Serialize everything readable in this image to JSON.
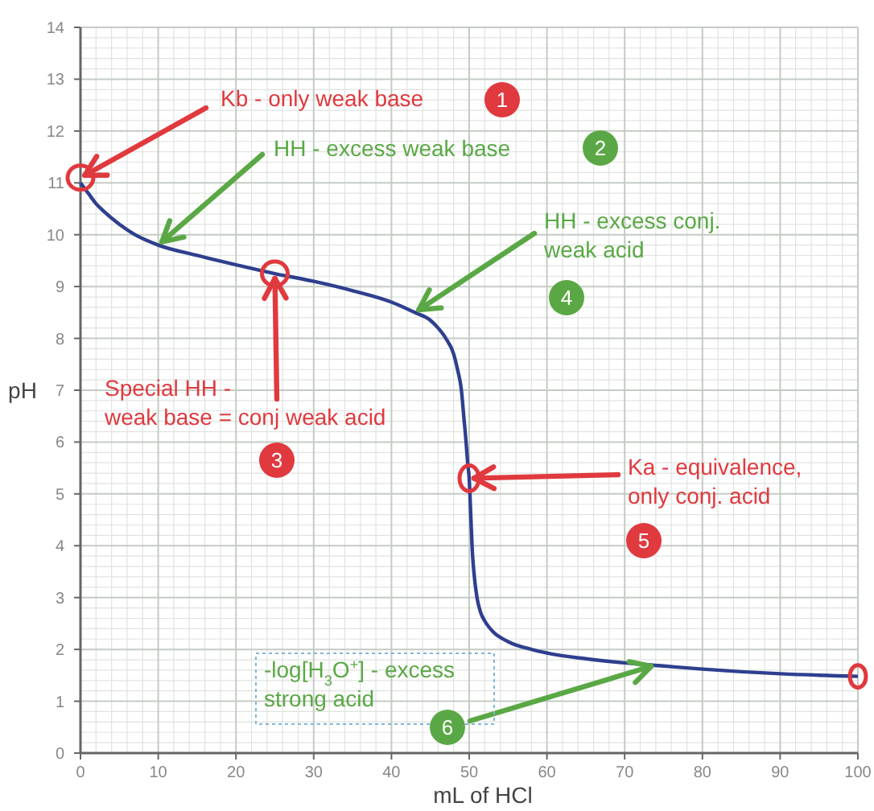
{
  "chart_data": {
    "type": "line",
    "xlabel": "mL of HCl",
    "ylabel": "pH",
    "xlim": [
      0,
      100
    ],
    "ylim": [
      0,
      14
    ],
    "xticks": [
      0,
      10,
      20,
      30,
      40,
      50,
      60,
      70,
      80,
      90,
      100
    ],
    "yticks": [
      0,
      1,
      2,
      3,
      4,
      5,
      6,
      7,
      8,
      9,
      10,
      11,
      12,
      13,
      14
    ],
    "grid": true,
    "marker": "none",
    "line_style": "solid",
    "series": [
      {
        "color": "#2e3f8f",
        "x": [
          0,
          1,
          2,
          3,
          5,
          7,
          10,
          15,
          20,
          25,
          30,
          35,
          40,
          43,
          45,
          46,
          47,
          48,
          48.5,
          49,
          49.3,
          49.6,
          49.8,
          50,
          50.2,
          50.4,
          50.6,
          51,
          51.5,
          52,
          53,
          55,
          58,
          60,
          65,
          70,
          75,
          80,
          90,
          100
        ],
        "values": [
          11.0,
          10.8,
          10.6,
          10.45,
          10.2,
          10.0,
          9.8,
          9.6,
          9.42,
          9.25,
          9.1,
          8.92,
          8.7,
          8.5,
          8.35,
          8.2,
          8.0,
          7.7,
          7.4,
          7.0,
          6.5,
          6.0,
          5.6,
          5.3,
          4.6,
          3.9,
          3.5,
          3.0,
          2.7,
          2.55,
          2.35,
          2.15,
          2.0,
          1.93,
          1.82,
          1.74,
          1.68,
          1.62,
          1.53,
          1.48
        ]
      }
    ],
    "annotations": [
      {
        "text": "Kb - only weak base",
        "x": 0,
        "y": 11.1
      },
      {
        "text": "HH - excess weak base",
        "x": 10,
        "y": 9.8
      },
      {
        "text": "Special HH -\nweak base = conj weak acid",
        "x": 25,
        "y": 9.25
      },
      {
        "text": "HH - excess conj.\nweak acid",
        "x": 43,
        "y": 8.5
      },
      {
        "text": "Ka - equivalence,\nonly conj. acid",
        "x": 50,
        "y": 5.3
      },
      {
        "text": "-log[H$_{3}$O$^{+}$] - excess\nstrong acid",
        "x": 74,
        "y": 1.7
      },
      "1",
      "2",
      "3",
      "4",
      "5",
      "6"
    ]
  }
}
